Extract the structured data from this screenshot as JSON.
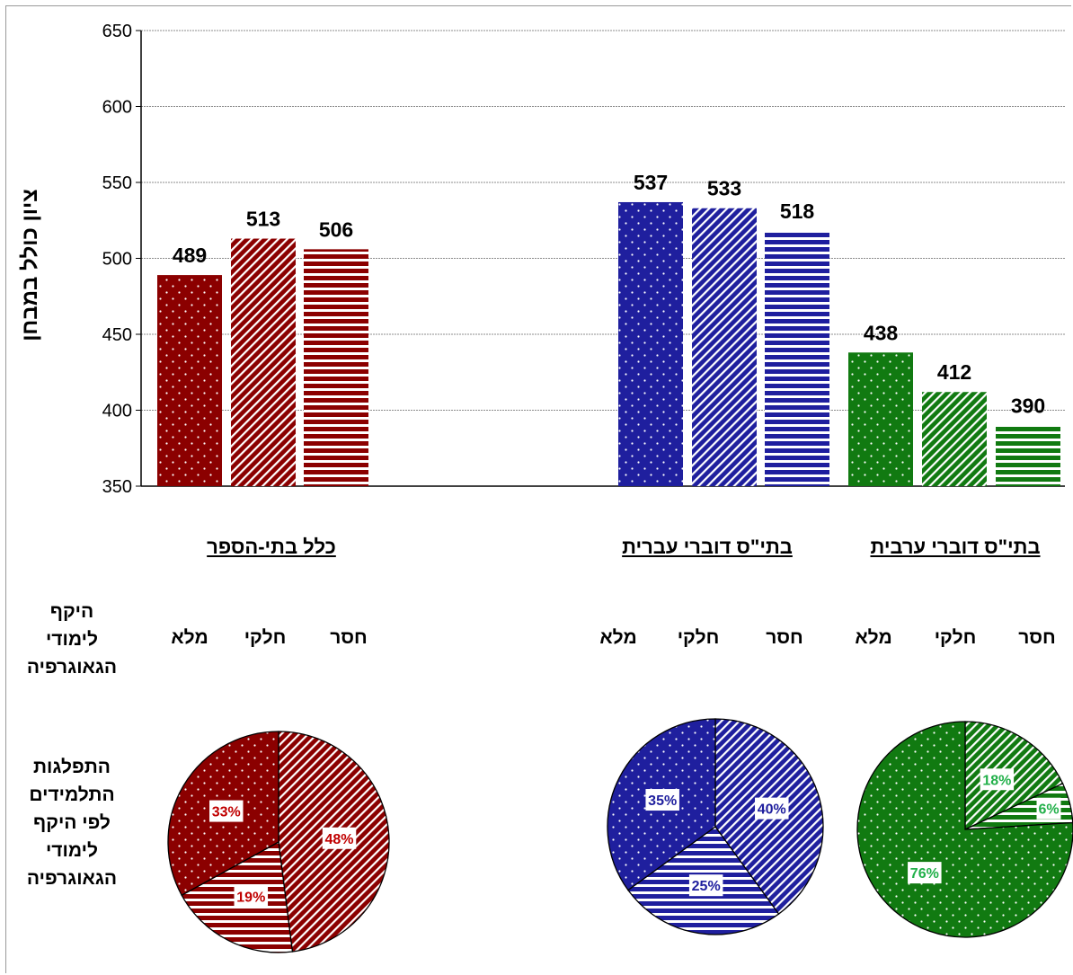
{
  "axis": {
    "ylabel": "ציון כולל במבחן",
    "yticks": [
      350,
      400,
      450,
      500,
      550,
      600,
      650
    ]
  },
  "groups": [
    {
      "title": "כלל בתי-הספר",
      "color": "#8B0000",
      "text_color": "#C00000"
    },
    {
      "title": "בתי\"ס דוברי עברית",
      "color": "#1F1F9E",
      "text_color": "#1F1F9E"
    },
    {
      "title": "בתי\"ס דוברי ערבית",
      "color": "#117A11",
      "text_color": "#22B04A"
    }
  ],
  "levels": [
    {
      "name": "מלא",
      "pattern": "dots"
    },
    {
      "name": "חלקי",
      "pattern": "diagonal"
    },
    {
      "name": "חסר",
      "pattern": "horizontal"
    }
  ],
  "side_labels": {
    "scope": [
      "היקף",
      "לימודי",
      "הגאוגרפיה"
    ],
    "distribution": [
      "התפלגות",
      "התלמידים",
      "לפי היקף",
      "לימודי",
      "הגאוגרפיה"
    ]
  },
  "chart_data": [
    {
      "type": "bar",
      "categories": [
        "כלל בתי-הספר",
        "בתי\"ס דוברי עברית",
        "בתי\"ס דוברי ערבית"
      ],
      "ylabel": "ציון כולל במבחן",
      "ylim": [
        350,
        650
      ],
      "grid": true,
      "series": [
        {
          "name": "מלא",
          "values": [
            489,
            537,
            438
          ]
        },
        {
          "name": "חלקי",
          "values": [
            513,
            533,
            412
          ]
        },
        {
          "name": "חסר",
          "values": [
            506,
            518,
            390
          ]
        }
      ]
    },
    {
      "type": "pie",
      "title": "כלל בתי-הספר",
      "labels": [
        "חלקי",
        "חסר",
        "מלא"
      ],
      "values": [
        48,
        19,
        33
      ],
      "value_labels": [
        "48%",
        "19%",
        "33%"
      ]
    },
    {
      "type": "pie",
      "title": "בתי\"ס דוברי עברית",
      "labels": [
        "חלקי",
        "חסר",
        "מלא"
      ],
      "values": [
        40,
        25,
        35
      ],
      "value_labels": [
        "40%",
        "25%",
        "35%"
      ]
    },
    {
      "type": "pie",
      "title": "בתי\"ס דוברי ערבית",
      "labels": [
        "חלקי",
        "חסר",
        "מלא"
      ],
      "values": [
        18,
        6,
        76
      ],
      "value_labels": [
        "18%",
        "6%",
        "76%"
      ]
    }
  ]
}
